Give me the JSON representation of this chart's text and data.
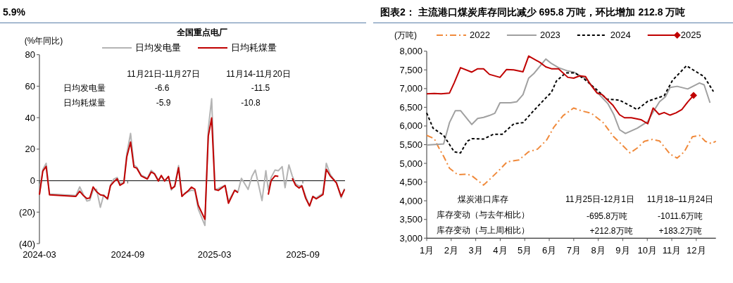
{
  "chart_data": [
    {
      "type": "line",
      "title": "全国重点电厂",
      "ylabel": "(%年同比)",
      "annotations": [
        "5.9%",
        "11月21日-11月27日",
        "11月14-11月20日",
        "日均发电量",
        "-6.6",
        "-11.5",
        "日均耗煤量",
        "-5.9",
        "-10.8"
      ],
      "xlim": [
        "2024-03-01",
        "2025-11-28"
      ],
      "xticks": [
        "2024-03",
        "2024-09",
        "2025-03",
        "2025-09"
      ],
      "ylim": [
        -40,
        80
      ],
      "yticks": [
        {
          "value": -40,
          "label": "(40)"
        },
        {
          "value": -20,
          "label": "(20)"
        },
        0,
        20,
        40,
        60,
        80
      ],
      "legend": "top",
      "series": [
        {
          "name": "日均发电量",
          "color": "#b4b4b4",
          "line_style": "solid",
          "x": [
            "2024-03-01",
            "2024-03-08",
            "2024-03-15",
            "2024-03-22",
            "2024-05-16",
            "2024-05-24",
            "2024-06-01",
            "2024-06-08",
            "2024-06-14",
            "2024-06-21",
            "2024-06-28",
            "2024-07-06",
            "2024-07-13",
            "2024-07-21",
            "2024-07-27",
            "2024-08-03",
            "2024-08-10",
            "2024-08-16",
            "2024-08-24",
            "2024-08-30",
            "2024-09-07",
            "2024-09-14",
            "2024-09-20",
            "2024-09-29",
            "2024-10-12",
            "2024-10-20",
            "2024-10-27",
            "2024-11-04",
            "2024-11-10",
            "2024-11-17",
            "2024-11-25",
            "2024-12-01",
            "2024-12-08",
            "2024-12-16",
            "2024-12-23",
            "2024-12-29",
            "2025-01-05",
            "2025-01-12",
            "2025-01-19",
            "2025-01-26",
            "2025-02-09",
            "2025-02-16",
            "2025-02-23",
            "2025-03-02",
            "2025-03-09",
            "2025-03-23",
            "2025-03-30",
            "2025-04-12",
            "2025-04-19",
            "2025-04-26",
            "2025-05-10",
            "2025-05-18",
            "2025-05-25",
            "2025-06-08",
            "2025-06-16",
            "2025-06-21",
            "2025-06-27",
            "2025-07-05",
            "2025-07-12",
            "2025-07-20",
            "2025-07-26",
            "2025-08-03",
            "2025-08-10",
            "2025-08-17",
            "2025-08-24",
            "2025-08-30",
            "2025-09-07",
            "2025-09-15",
            "2025-09-22",
            "2025-09-29",
            "2025-10-13",
            "2025-10-20",
            "2025-10-28",
            "2025-11-04",
            "2025-11-10",
            "2025-11-20",
            "2025-11-27"
          ],
          "values": [
            -9,
            7,
            11,
            -8.5,
            -9.5,
            -4,
            -9,
            -13,
            -12.5,
            -6,
            -5.5,
            -17,
            -9,
            -12,
            -3,
            1,
            2,
            -2,
            -1,
            17,
            30,
            10,
            8.5,
            3.5,
            1.5,
            6.5,
            4.5,
            0.5,
            3,
            0,
            2.5,
            -6,
            -3,
            9.5,
            -9.5,
            -8,
            -7,
            -6,
            -6.5,
            -18,
            -28.5,
            33,
            52,
            -6,
            -5,
            -3,
            -13,
            -6,
            -7,
            1.5,
            -5.6,
            2.7,
            6.7,
            -12.7,
            6.3,
            -6,
            2,
            6.7,
            6.3,
            8.9,
            -4.5,
            10,
            3,
            -2,
            -3.5,
            -3,
            -10,
            -16,
            -10,
            -11,
            -8,
            11,
            4,
            1,
            -1,
            -11,
            -5
          ]
        },
        {
          "name": "日均耗煤量",
          "color": "#c00000",
          "line_style": "solid",
          "x": [
            "2024-03-01",
            "2024-03-08",
            "2024-03-15",
            "2024-03-22",
            "2024-05-16",
            "2024-05-24",
            "2024-06-01",
            "2024-06-08",
            "2024-06-14",
            "2024-06-21",
            "2024-06-28",
            "2024-07-06",
            "2024-07-13",
            "2024-07-21",
            "2024-07-27",
            "2024-08-03",
            "2024-08-10",
            "2024-08-16",
            "2024-08-24",
            "2024-08-30",
            "2024-09-07",
            "2024-09-14",
            "2024-09-20",
            "2024-09-29",
            "2024-10-12",
            "2024-10-20",
            "2024-10-27",
            "2024-11-04",
            "2024-11-10",
            "2024-11-17",
            "2024-11-25",
            "2024-12-01",
            "2024-12-08",
            "2024-12-16",
            "2024-12-23",
            "2024-12-29",
            "2025-01-05",
            "2025-01-12",
            "2025-01-19",
            "2025-01-26",
            "2025-02-09",
            "2025-02-16",
            "2025-02-23",
            "2025-03-02",
            "2025-03-09",
            "2025-03-23",
            "2025-03-30",
            "2025-04-12",
            "2025-04-19"
          ],
          "values": [
            -9,
            6,
            9,
            -9,
            -10,
            -6.7,
            -9.6,
            -11.4,
            -11,
            -4,
            -7,
            -9,
            -9.5,
            -11.5,
            -3.3,
            -0.8,
            1.2,
            -3,
            -1.5,
            15,
            24.5,
            8.6,
            7.9,
            3,
            1,
            5.5,
            4.2,
            -0.3,
            3.3,
            -0.3,
            2.7,
            -5.2,
            -3.7,
            8.2,
            -10,
            -8.3,
            -6.5,
            -4.1,
            -5.5,
            -15.6,
            -24.6,
            28.3,
            39.8,
            -5.6,
            -6.2,
            -3.1,
            -14.4,
            -6.2,
            -7.6
          ]
        },
        {
          "color": "#c00000",
          "line_style": "solid",
          "x": [
            "2025-06-21",
            "2025-06-27",
            "2025-07-05",
            "2025-07-12"
          ],
          "values": [
            -8.9,
            0,
            3,
            2.7
          ]
        },
        {
          "color": "#c00000",
          "line_style": "solid",
          "x": [
            "2025-08-10",
            "2025-08-17",
            "2025-08-24",
            "2025-08-30",
            "2025-09-07",
            "2025-09-15",
            "2025-09-22",
            "2025-09-29",
            "2025-10-13",
            "2025-10-20",
            "2025-10-28",
            "2025-11-04",
            "2025-11-10",
            "2025-11-20",
            "2025-11-27"
          ],
          "values": [
            1.5,
            -3,
            -4.7,
            -3.4,
            -11.2,
            -16.1,
            -10.1,
            -11.6,
            -8.9,
            7.2,
            3,
            0.7,
            -1.5,
            -10.1,
            -5.6
          ]
        }
      ]
    },
    {
      "type": "line",
      "title": "图表2： 主流港口煤炭库存同比减少 695.8 万吨，环比增加 212.8 万吨",
      "ylabel": "(万吨)",
      "annotations": [
        "煤炭港口库存",
        "11月25日-12月1日",
        "11月18–11月24日",
        "库存变动（与去年相比）",
        "-695.8万吨",
        "-1011.6万吨",
        "库存变动（与上周相比）",
        "+212.8万吨",
        "+183.2万吨"
      ],
      "xlim": [
        1,
        12.8
      ],
      "xticks": [
        {
          "value": 1,
          "label": "1月"
        },
        {
          "value": 2,
          "label": "2月"
        },
        {
          "value": 3,
          "label": "3月"
        },
        {
          "value": 4,
          "label": "4月"
        },
        {
          "value": 5,
          "label": "5月"
        },
        {
          "value": 6,
          "label": "6月"
        },
        {
          "value": 7,
          "label": "7月"
        },
        {
          "value": 8,
          "label": "8月"
        },
        {
          "value": 9,
          "label": "9月"
        },
        {
          "value": 10,
          "label": "10月"
        },
        {
          "value": 11,
          "label": "11月"
        },
        {
          "value": 12,
          "label": "12月"
        }
      ],
      "ylim": [
        3000,
        8000
      ],
      "yticks": [
        {
          "value": 3000,
          "label": "3,000"
        },
        {
          "value": 3500,
          "label": "3,500"
        },
        {
          "value": 4000,
          "label": "4,000"
        },
        {
          "value": 4500,
          "label": "4,500"
        },
        {
          "value": 5000,
          "label": "5,000"
        },
        {
          "value": 5500,
          "label": "5,500"
        },
        {
          "value": 6000,
          "label": "6,000"
        },
        {
          "value": 6500,
          "label": "6,500"
        },
        {
          "value": 7000,
          "label": "7,000"
        },
        {
          "value": 7500,
          "label": "7,500"
        },
        {
          "value": 8000,
          "label": "8,000"
        }
      ],
      "legend": "top",
      "series": [
        {
          "name": "2022",
          "color": "#f08a3c",
          "line_style": "dashdot",
          "x": [
            1,
            1.31,
            1.5,
            1.69,
            1.93,
            2.26,
            2.65,
            2.84,
            3.32,
            3.6,
            3.99,
            4.28,
            4.76,
            5.16,
            5.52,
            5.9,
            6.19,
            6.57,
            7,
            7.34,
            7.72,
            8.2,
            8.63,
            8.87,
            9.3,
            9.59,
            9.88,
            10.21,
            10.5,
            10.93,
            11.22,
            11.51,
            11.84,
            12.13,
            12.37,
            12.61,
            12.8
          ],
          "values": [
            5750,
            5660,
            5410,
            5190,
            4870,
            4700,
            4710,
            4670,
            4420,
            4590,
            4840,
            5040,
            5090,
            5310,
            5380,
            5630,
            5970,
            6280,
            6480,
            6400,
            6340,
            6090,
            5710,
            5560,
            5280,
            5410,
            5590,
            5640,
            5600,
            5250,
            5140,
            5310,
            5710,
            5750,
            5590,
            5530,
            5590
          ]
        },
        {
          "name": "2023",
          "color": "#a0a0a0",
          "line_style": "solid",
          "x": [
            1,
            1.69,
            1.93,
            2.17,
            2.38,
            2.84,
            3.08,
            3.32,
            3.56,
            3.78,
            3.99,
            4.42,
            4.68,
            4.93,
            5.16,
            5.37,
            5.86,
            6.09,
            6.38,
            6.76,
            7,
            7.24,
            7.53,
            7.95,
            8.39,
            8.63,
            8.87,
            9.11,
            9.59,
            10.02,
            10.26,
            10.5,
            10.74,
            10.93,
            11.22,
            11.65,
            12.13,
            12.32,
            12.56
          ],
          "values": [
            5490,
            5520,
            6090,
            6410,
            6410,
            6040,
            6200,
            6230,
            6280,
            6340,
            6620,
            6620,
            6650,
            6840,
            7280,
            7400,
            7790,
            7670,
            7560,
            7470,
            7440,
            7350,
            7250,
            6900,
            6600,
            6310,
            5900,
            5800,
            5940,
            6120,
            6400,
            6650,
            6780,
            7030,
            7060,
            6990,
            7150,
            7100,
            6620
          ]
        },
        {
          "name": "2024",
          "color": "#000000",
          "line_style": "dashed",
          "x": [
            1,
            1.26,
            1.69,
            2.12,
            2.38,
            2.65,
            2.84,
            3.32,
            3.73,
            4.08,
            4.56,
            4.93,
            5.31,
            5.86,
            6.09,
            6.29,
            6.67,
            7.05,
            7.44,
            7.92,
            8.35,
            8.87,
            9.59,
            10.02,
            10.69,
            11.03,
            11.6,
            12.32,
            12.7
          ],
          "values": [
            6350,
            5940,
            5750,
            5310,
            5280,
            5590,
            5660,
            5650,
            5780,
            5780,
            6060,
            6090,
            6370,
            6750,
            6900,
            7200,
            7420,
            7420,
            7250,
            6980,
            6720,
            6690,
            6440,
            6660,
            6810,
            7220,
            7610,
            7320,
            6920
          ]
        },
        {
          "name": "2025",
          "color": "#c00000",
          "line_style": "solid",
          "x": [
            1,
            1.31,
            1.59,
            1.93,
            2.12,
            2.38,
            2.84,
            3.08,
            3.32,
            3.56,
            3.99,
            4.26,
            4.55,
            4.93,
            5.16,
            5.62,
            5.86,
            6.09,
            6.38,
            6.76,
            7,
            7.24,
            7.48,
            7.67,
            7.95,
            8.15,
            8.59,
            8.87,
            9.07,
            9.35,
            9.74,
            10.02,
            10.24,
            10.48,
            10.69,
            10.93,
            11.17,
            11.41,
            11.65,
            11.89
          ],
          "values": [
            6860,
            6870,
            6860,
            6880,
            7150,
            7560,
            7440,
            7530,
            7530,
            7380,
            7300,
            7510,
            7500,
            7450,
            7870,
            7700,
            7580,
            7530,
            7530,
            7300,
            7280,
            7340,
            7320,
            7120,
            6880,
            6840,
            6560,
            6300,
            6220,
            6220,
            6170,
            6060,
            6480,
            6310,
            6360,
            6290,
            6350,
            6440,
            6640,
            6820
          ]
        },
        {
          "type": "scatter",
          "color": "#c00000",
          "marker": "diamond",
          "x": [
            11.89
          ],
          "values": [
            6820
          ]
        }
      ]
    }
  ]
}
